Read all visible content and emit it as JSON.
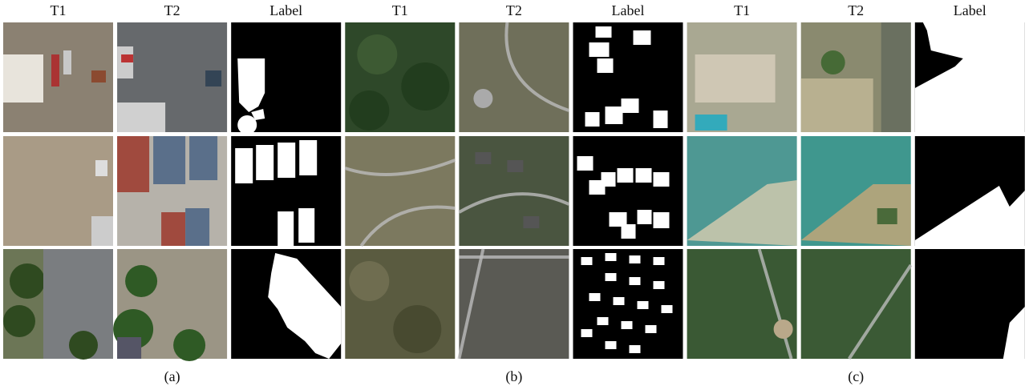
{
  "groups": [
    {
      "columns": [
        "T1",
        "T2",
        "Label"
      ],
      "caption": "(a)"
    },
    {
      "columns": [
        "T1",
        "T2",
        "Label"
      ],
      "caption": "(b)"
    },
    {
      "columns": [
        "T1",
        "T2",
        "Label"
      ],
      "caption": "(c)"
    }
  ]
}
